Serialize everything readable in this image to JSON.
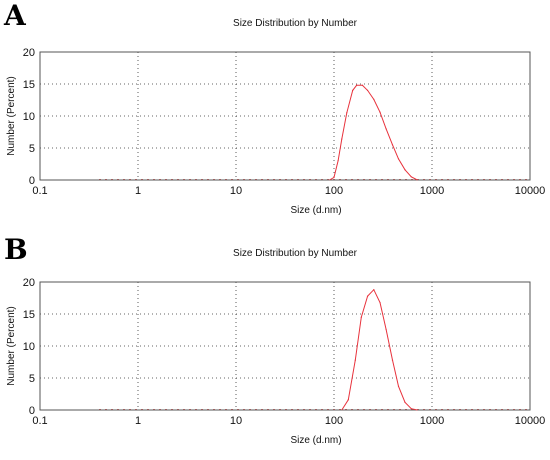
{
  "chart_data": [
    {
      "panel_label": "A",
      "type": "line",
      "title": "Size Distribution by Number",
      "xlabel": "Size (d.nm)",
      "ylabel": "Number (Percent)",
      "x_scale": "log",
      "xlim": [
        0.1,
        10000
      ],
      "ylim": [
        0,
        20
      ],
      "xticks": [
        0.1,
        1,
        10,
        100,
        1000,
        10000
      ],
      "xtick_labels": [
        "0.1",
        "1",
        "10",
        "100",
        "1000",
        "10000"
      ],
      "yticks": [
        0,
        5,
        10,
        15,
        20
      ],
      "ytick_labels": [
        "0",
        "5",
        "10",
        "15",
        "20"
      ],
      "grid": true,
      "legend": false,
      "line_color": "#e8323c",
      "baseline_color": "#e06666",
      "series": [
        {
          "x": [
            0.4,
            90,
            100,
            110,
            120,
            135,
            155,
            170,
            195,
            220,
            255,
            295,
            340,
            395,
            455,
            530,
            615,
            710,
            10000
          ],
          "y": [
            0,
            0,
            0.4,
            3.0,
            6.4,
            10.5,
            14.0,
            14.8,
            14.8,
            14.0,
            12.6,
            10.6,
            8.0,
            5.5,
            3.3,
            1.6,
            0.5,
            0,
            0
          ]
        }
      ]
    },
    {
      "panel_label": "B",
      "type": "line",
      "title": "Size Distribution by Number",
      "xlabel": "Size (d.nm)",
      "ylabel": "Number (Percent)",
      "x_scale": "log",
      "xlim": [
        0.1,
        10000
      ],
      "ylim": [
        0,
        20
      ],
      "xticks": [
        0.1,
        1,
        10,
        100,
        1000,
        10000
      ],
      "xtick_labels": [
        "0.1",
        "1",
        "10",
        "100",
        "1000",
        "10000"
      ],
      "yticks": [
        0,
        5,
        10,
        15,
        20
      ],
      "ytick_labels": [
        "0",
        "5",
        "10",
        "15",
        "20"
      ],
      "grid": true,
      "legend": false,
      "line_color": "#e8323c",
      "baseline_color": "#e06666",
      "series": [
        {
          "x": [
            0.4,
            120,
            140,
            165,
            190,
            220,
            255,
            295,
            340,
            395,
            455,
            530,
            615,
            710,
            10000
          ],
          "y": [
            0,
            0,
            1.6,
            7.8,
            14.5,
            17.8,
            18.8,
            16.8,
            12.6,
            7.8,
            3.7,
            1.2,
            0.2,
            0,
            0
          ]
        }
      ]
    }
  ]
}
